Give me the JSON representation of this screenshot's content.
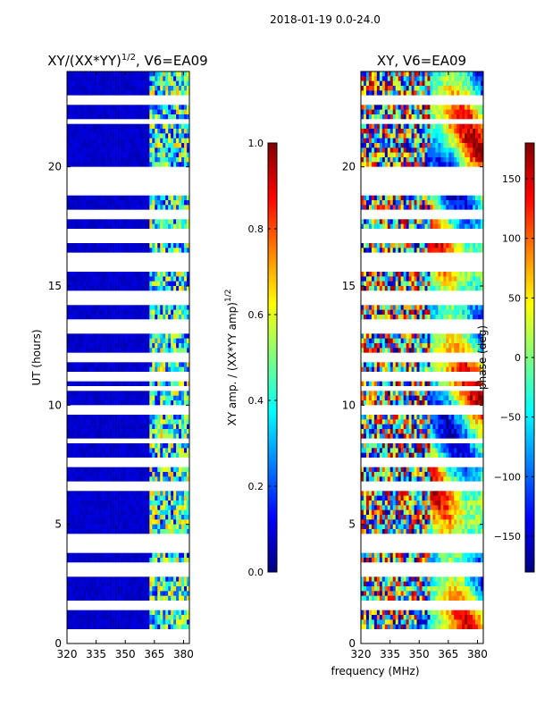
{
  "figure": {
    "suptitle": "2018-01-19 0.0-24.0",
    "shared_xlabel": "frequency (MHz)"
  },
  "colors": {
    "jet": [
      "#00007f",
      "#0000ff",
      "#007fff",
      "#00ffff",
      "#7fff7f",
      "#ffff00",
      "#ff7f00",
      "#ff0000",
      "#7f0000"
    ],
    "background": "#ffffff"
  },
  "chart_data": [
    {
      "type": "heatmap",
      "title": "XY/(XX*YY)^{1/2}, V6=EA09",
      "title_main": "XY/(XX*YY)",
      "title_sup": "1/2",
      "title_rest": ", V6=EA09",
      "xlabel": "",
      "ylabel": "UT (hours)",
      "xlim": [
        320,
        383
      ],
      "ylim": [
        0,
        24
      ],
      "xticks": [
        320,
        335,
        350,
        365,
        380
      ],
      "yticks": [
        0,
        5,
        10,
        15,
        20
      ],
      "colorbar": {
        "label": "XY amp. / (XX*YY amp)^{1/2}",
        "label_main": "XY amp. / (XX*YY amp)",
        "label_sup": "1/2",
        "range": [
          0.0,
          1.0
        ],
        "ticks": [
          "0.0",
          "0.2",
          "0.4",
          "0.6",
          "0.8",
          "1.0"
        ],
        "tick_values": [
          0.0,
          0.2,
          0.4,
          0.6,
          0.8,
          1.0
        ]
      },
      "description": "mostly low amplitude (dark blue) below ~362 MHz, high-variance band 362-383 MHz; horizontal white gaps = flagged times",
      "active_band_mhz": [
        362,
        383
      ]
    },
    {
      "type": "heatmap",
      "title": "XY, V6=EA09",
      "xlabel": "frequency (MHz)",
      "ylabel": "",
      "xlim": [
        320,
        383
      ],
      "ylim": [
        0,
        24
      ],
      "xticks": [
        320,
        335,
        350,
        365,
        380
      ],
      "yticks": [
        0,
        5,
        10,
        15,
        20
      ],
      "colorbar": {
        "label": "phase (deg)",
        "range": [
          -180,
          180
        ],
        "ticks": [
          "−150",
          "−100",
          "−50",
          "0",
          "50",
          "100",
          "150"
        ],
        "tick_values": [
          -150,
          -100,
          -50,
          0,
          50,
          100,
          150
        ]
      }
    }
  ],
  "flag_gaps_hours": [
    0.2,
    0.5,
    1.5,
    1.6,
    2.9,
    3.0,
    3.3,
    4.0,
    4.2,
    4.5,
    6.6,
    7.5,
    7.75,
    8.5,
    9.8,
    10.7,
    11.2,
    12.0,
    13.2,
    13.5,
    14.3,
    14.6,
    15.8,
    16.1,
    16.3,
    17.0,
    17.3,
    17.9,
    18.1,
    19.0,
    19.2,
    19.5,
    19.8,
    21.9,
    22.8
  ]
}
